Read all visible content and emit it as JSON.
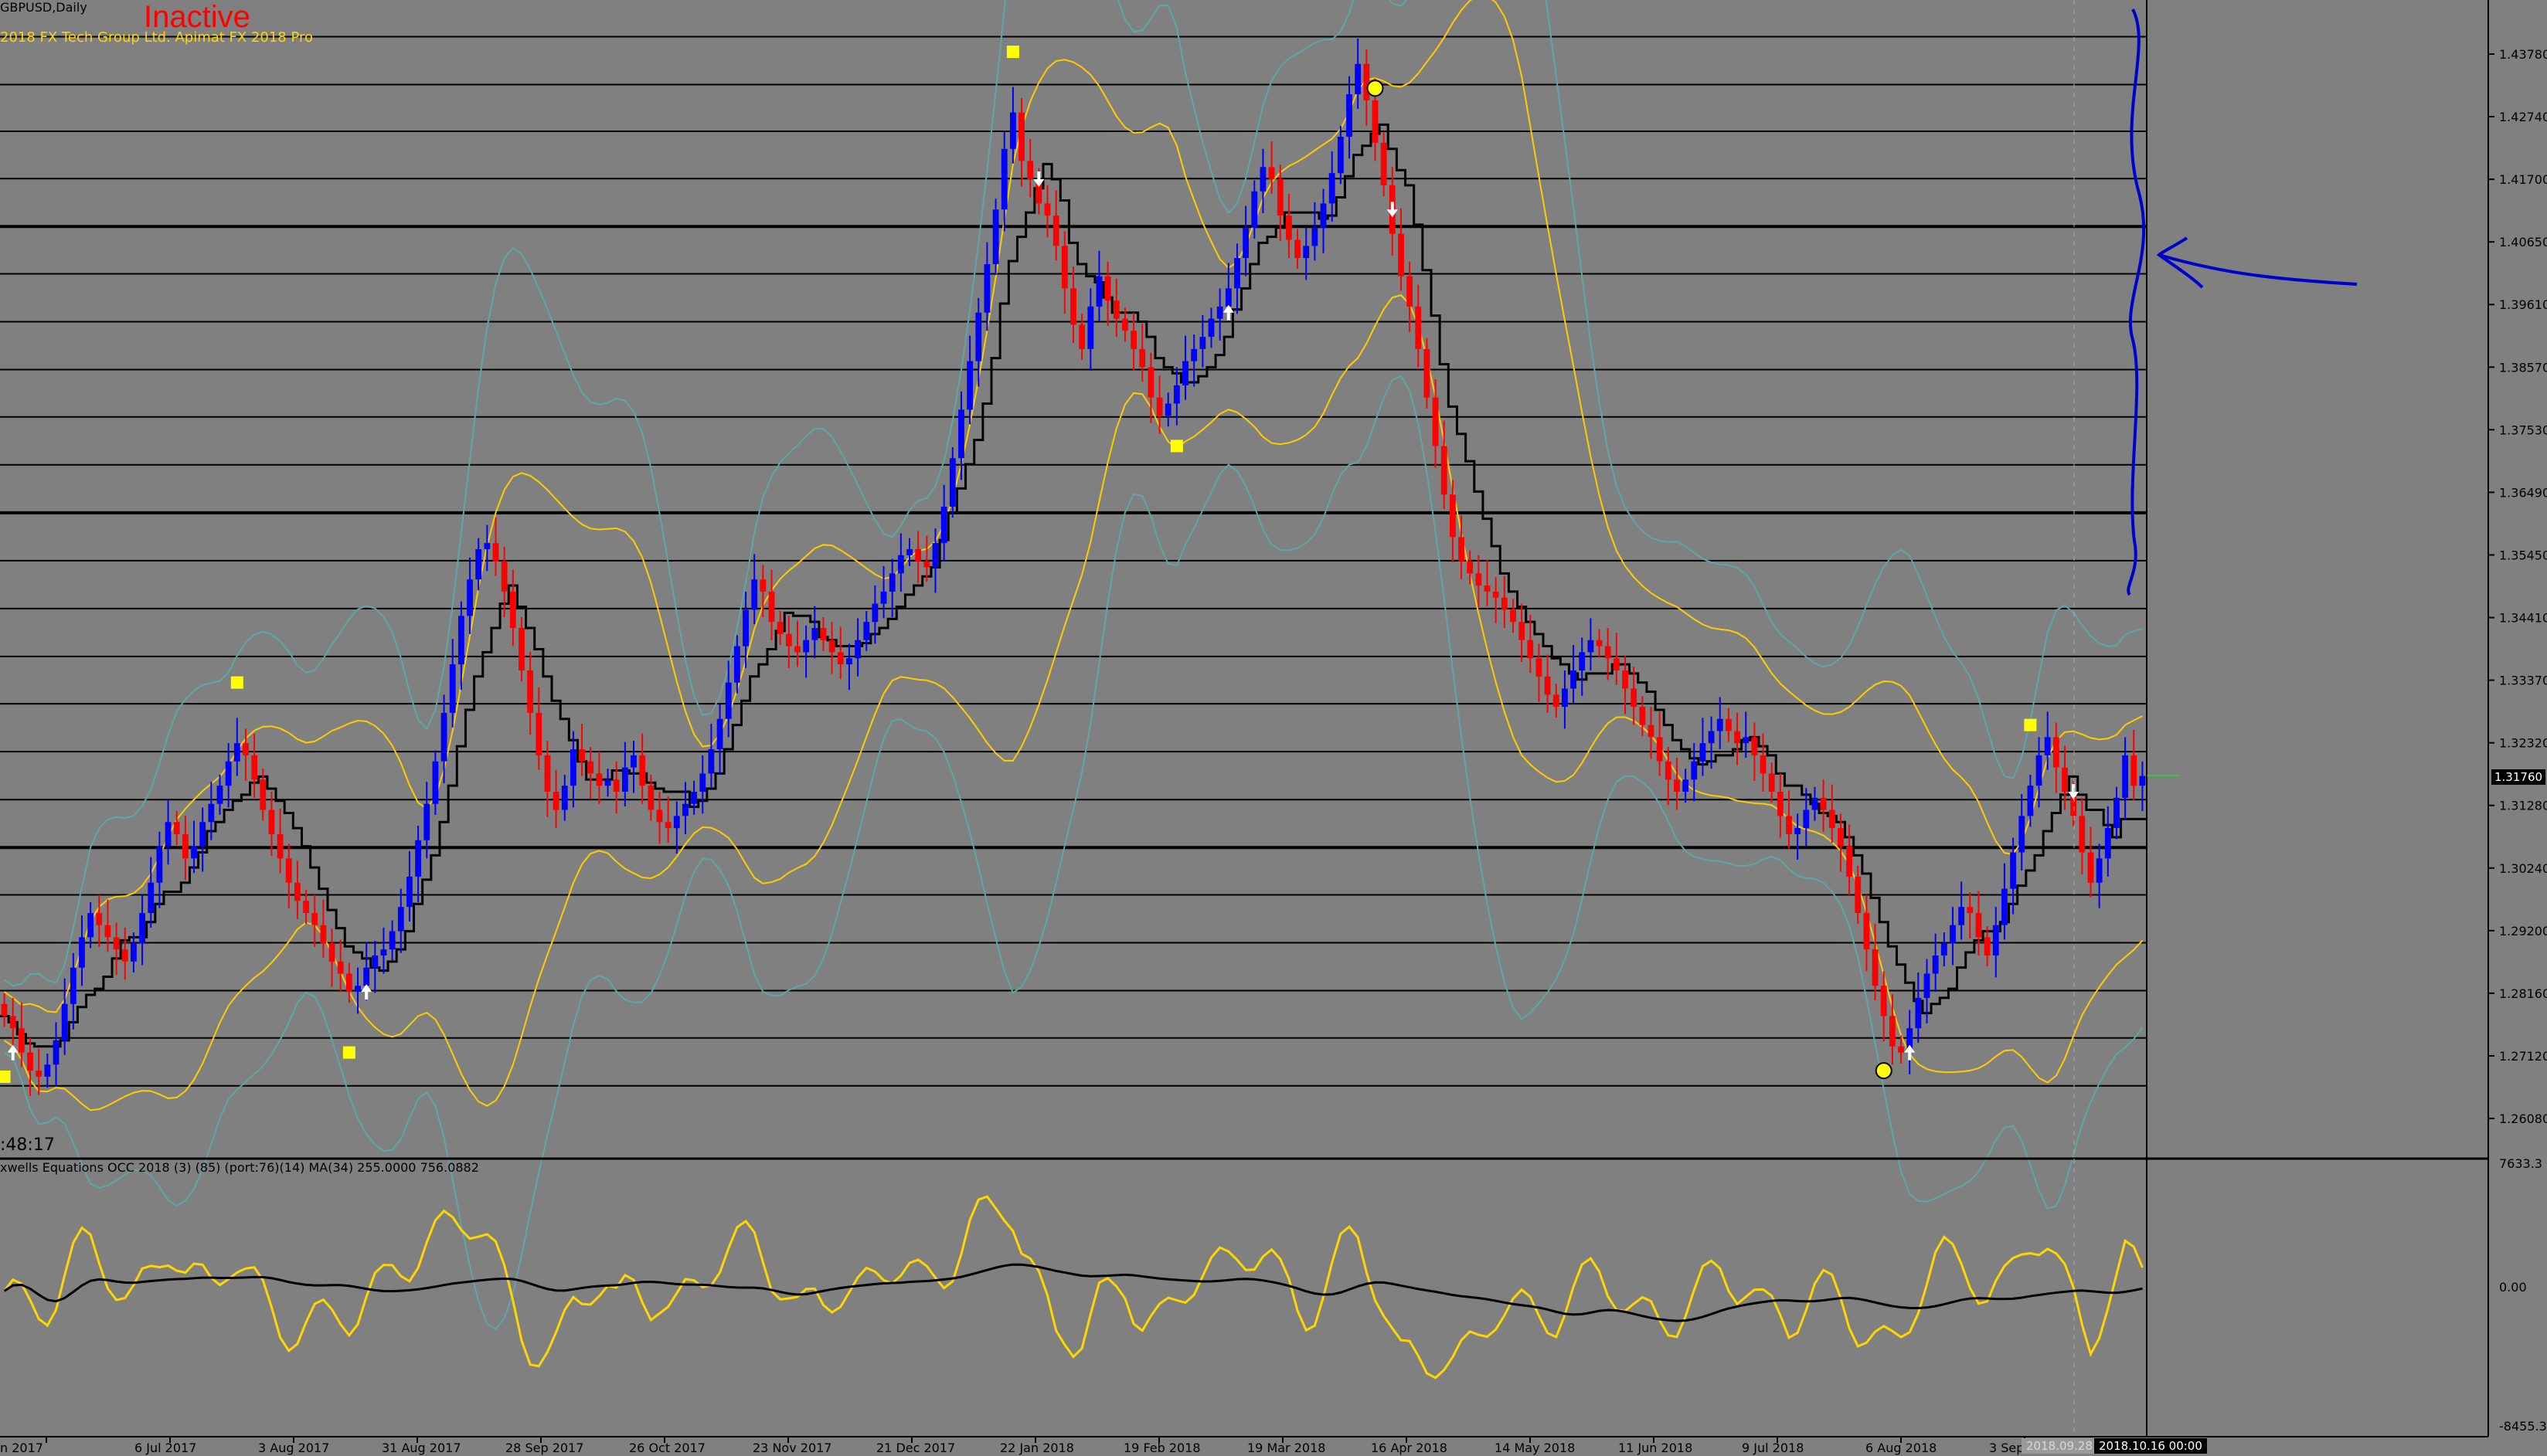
{
  "chart_info": {
    "symbol_timeframe": "GBPUSD,Daily",
    "status": "Inactive",
    "copyright": "2018 FX Tech Group Ltd. Apimat FX 2018 Pro",
    "countdown": ":48:17",
    "indicator_label": "xwells Equations OCC 2018 (3) (85) (port:76)(14) MA(34) 255.0000 756.0882",
    "current_price_tag": "1.31760",
    "cursor_date_tag": "2018.09.28",
    "current_date_tag": "2018.10.16 00:00"
  },
  "colors": {
    "background": "#808080",
    "bull_candle": "#0000ff",
    "bear_candle": "#ff0000",
    "grid_line": "#000000",
    "band": "#ffcc00",
    "band_outer": "#5fa6a6",
    "oscillator": "#ffd700",
    "signal_marker": "#ffff00",
    "annotation": "#0000cc",
    "status": "#ff0000"
  },
  "price_axis": {
    "labels": [
      "1.43780",
      "1.42740",
      "1.41700",
      "1.40650",
      "1.39610",
      "1.38570",
      "1.37530",
      "1.36490",
      "1.35450",
      "1.34410",
      "1.33370",
      "1.32320",
      "1.31280",
      "1.30240",
      "1.29200",
      "1.28160",
      "1.27120",
      "1.26080"
    ]
  },
  "indicator_axis": {
    "labels": [
      "7633.3",
      "0.00",
      "-8455.3"
    ]
  },
  "time_axis": {
    "labels": [
      "n 2017",
      "6 Jul 2017",
      "3 Aug 2017",
      "31 Aug 2017",
      "28 Sep 2017",
      "26 Oct 2017",
      "23 Nov 2017",
      "21 Dec 2017",
      "22 Jan 2018",
      "19 Feb 2018",
      "19 Mar 2018",
      "16 Apr 2018",
      "14 May 2018",
      "11 Jun 2018",
      "9 Jul 2018",
      "6 Aug 2018",
      "3 Sep 2018"
    ]
  },
  "chart_data": {
    "type": "candlestick",
    "title": "GBPUSD,Daily",
    "ylim": [
      1.2545,
      1.443
    ],
    "indicator_ylim": [
      -8455.3,
      7633.3
    ],
    "grid": true,
    "horizontal_levels": [
      1.4395,
      1.4316,
      1.4239,
      1.4161,
      1.4082,
      1.4004,
      1.3925,
      1.3846,
      1.3768,
      1.3689,
      1.361,
      1.3531,
      1.3452,
      1.3373,
      1.3295,
      1.3216,
      1.3137,
      1.3058,
      1.298,
      1.2901,
      1.2822,
      1.2744,
      1.2665
    ],
    "bold_levels": [
      1.4082,
      1.361,
      1.3058
    ],
    "closes": [
      1.278,
      1.276,
      1.272,
      1.269,
      1.268,
      1.27,
      1.274,
      1.28,
      1.286,
      1.291,
      1.295,
      1.293,
      1.291,
      1.289,
      1.287,
      1.29,
      1.295,
      1.3,
      1.306,
      1.31,
      1.308,
      1.304,
      1.306,
      1.31,
      1.313,
      1.316,
      1.32,
      1.323,
      1.321,
      1.317,
      1.312,
      1.308,
      1.304,
      1.3,
      1.297,
      1.295,
      1.293,
      1.29,
      1.287,
      1.285,
      1.282,
      1.283,
      1.286,
      1.288,
      1.289,
      1.292,
      1.296,
      1.301,
      1.307,
      1.313,
      1.32,
      1.328,
      1.336,
      1.344,
      1.35,
      1.355,
      1.356,
      1.353,
      1.348,
      1.342,
      1.335,
      1.328,
      1.321,
      1.315,
      1.312,
      1.316,
      1.322,
      1.32,
      1.318,
      1.316,
      1.317,
      1.315,
      1.319,
      1.321,
      1.316,
      1.312,
      1.31,
      1.309,
      1.311,
      1.313,
      1.315,
      1.318,
      1.322,
      1.327,
      1.333,
      1.339,
      1.345,
      1.35,
      1.348,
      1.343,
      1.341,
      1.339,
      1.338,
      1.34,
      1.342,
      1.34,
      1.338,
      1.336,
      1.337,
      1.34,
      1.343,
      1.346,
      1.348,
      1.351,
      1.354,
      1.355,
      1.353,
      1.352,
      1.356,
      1.362,
      1.37,
      1.378,
      1.386,
      1.394,
      1.402,
      1.411,
      1.421,
      1.427,
      1.419,
      1.416,
      1.412,
      1.41,
      1.405,
      1.398,
      1.392,
      1.388,
      1.395,
      1.4,
      1.396,
      1.393,
      1.391,
      1.388,
      1.385,
      1.38,
      1.377,
      1.379,
      1.382,
      1.386,
      1.388,
      1.39,
      1.393,
      1.395,
      1.398,
      1.403,
      1.408,
      1.414,
      1.418,
      1.416,
      1.41,
      1.406,
      1.403,
      1.405,
      1.408,
      1.412,
      1.417,
      1.423,
      1.43,
      1.435,
      1.429,
      1.422,
      1.415,
      1.407,
      1.4,
      1.395,
      1.388,
      1.38,
      1.372,
      1.364,
      1.357,
      1.353,
      1.351,
      1.349,
      1.348,
      1.347,
      1.345,
      1.343,
      1.34,
      1.337,
      1.334,
      1.331,
      1.329,
      1.332,
      1.335,
      1.338,
      1.34,
      1.339,
      1.337,
      1.335,
      1.332,
      1.329,
      1.326,
      1.324,
      1.32,
      1.317,
      1.315,
      1.317,
      1.32,
      1.323,
      1.325,
      1.327,
      1.325,
      1.323,
      1.324,
      1.321,
      1.318,
      1.315,
      1.311,
      1.308,
      1.309,
      1.312,
      1.314,
      1.312,
      1.309,
      1.306,
      1.301,
      1.295,
      1.289,
      1.283,
      1.278,
      1.273,
      1.272,
      1.276,
      1.281,
      1.285,
      1.288,
      1.29,
      1.293,
      1.296,
      1.295,
      1.291,
      1.288,
      1.293,
      1.299,
      1.305,
      1.311,
      1.316,
      1.321,
      1.324,
      1.319,
      1.315,
      1.311,
      1.305,
      1.3,
      1.304,
      1.309,
      1.314,
      1.321,
      1.316,
      1.3176
    ],
    "signals": [
      {
        "type": "square-bottom",
        "index": 0
      },
      {
        "type": "up-arrow",
        "index": 1
      },
      {
        "type": "square-top",
        "index": 27
      },
      {
        "type": "square-bottom",
        "index": 40
      },
      {
        "type": "up-arrow",
        "index": 42
      },
      {
        "type": "square-top",
        "index": 117
      },
      {
        "type": "down-arrow",
        "index": 120
      },
      {
        "type": "square-bottom",
        "index": 136
      },
      {
        "type": "up-arrow",
        "index": 142
      },
      {
        "type": "circle-top",
        "index": 159
      },
      {
        "type": "down-arrow",
        "index": 161
      },
      {
        "type": "circle-bottom",
        "index": 218
      },
      {
        "type": "up-arrow",
        "index": 221
      },
      {
        "type": "square-top",
        "index": 235
      },
      {
        "type": "down-arrow",
        "index": 240
      }
    ],
    "oscillator_note": "yellow oscillator line with black moving average"
  },
  "annotation": {
    "type": "hand-drawn brace and arrow",
    "color": "#0000cc"
  }
}
